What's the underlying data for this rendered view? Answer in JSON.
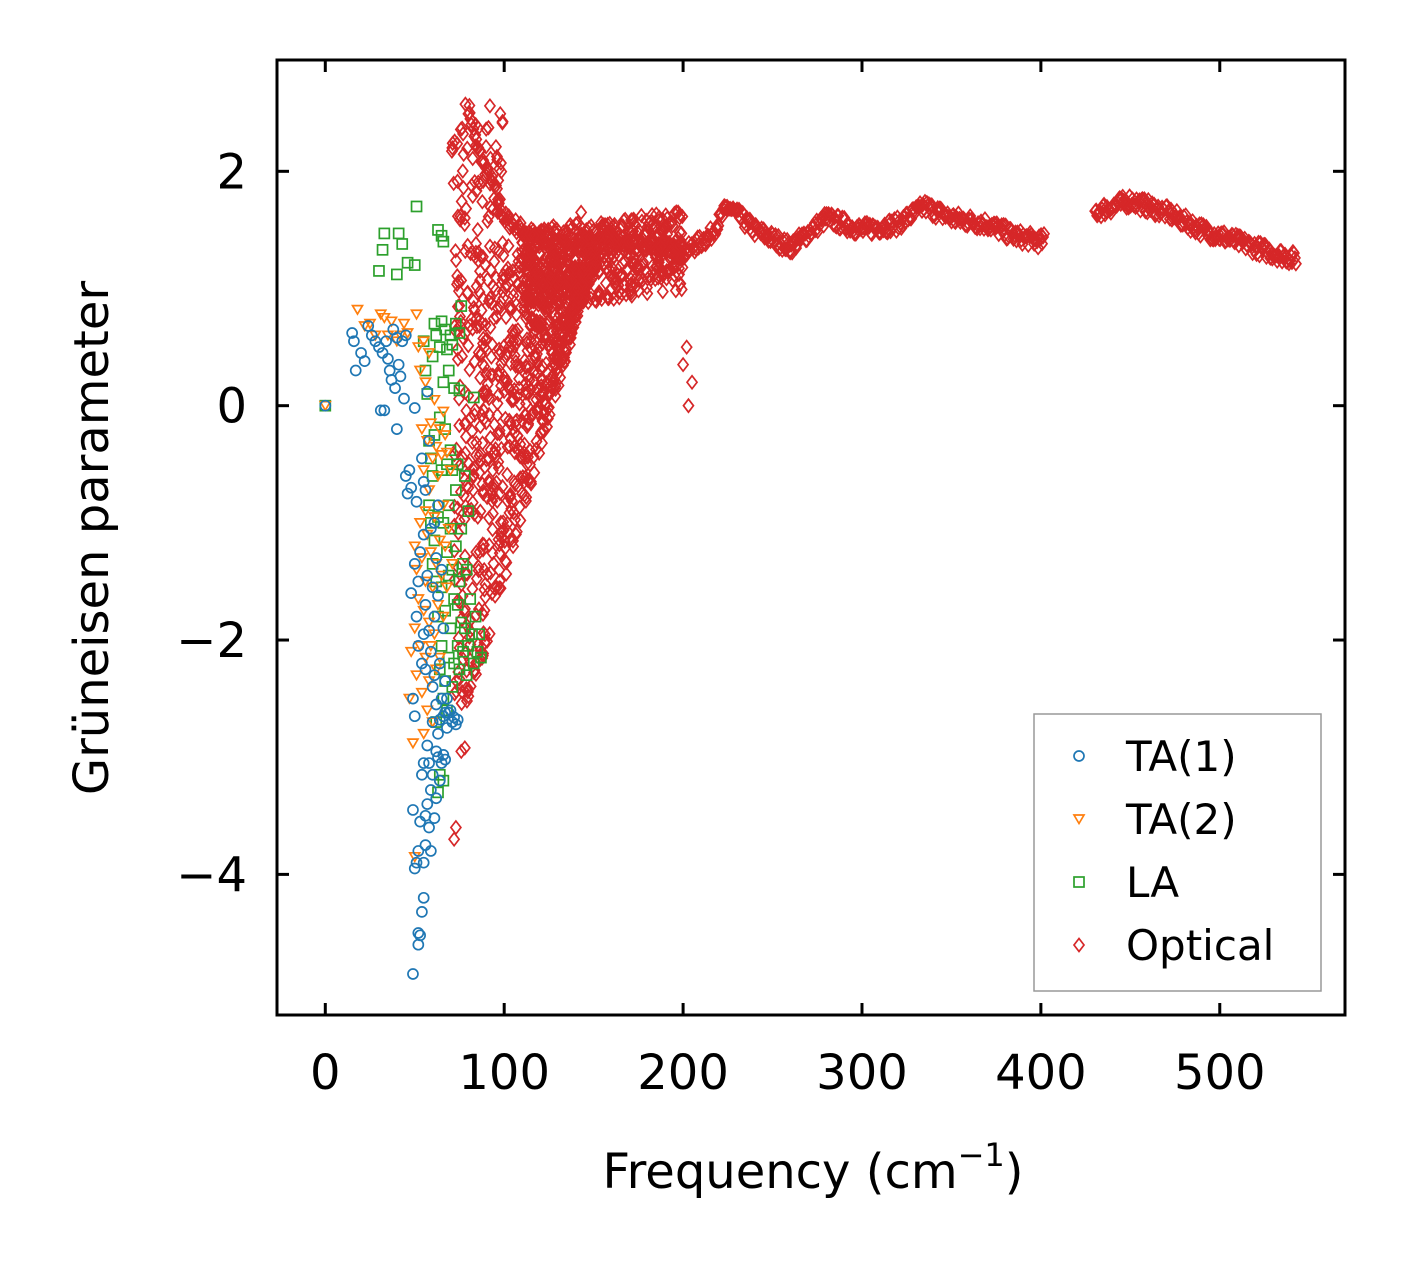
{
  "chart_data": {
    "type": "scatter",
    "title": "",
    "xlabel_main": "Frequency (cm",
    "xlabel_sup": "−1",
    "xlabel_end": ")",
    "ylabel": "Grüneisen parameter",
    "xlim": [
      -27,
      570
    ],
    "ylim": [
      -5.2,
      2.95
    ],
    "xticks": [
      0,
      100,
      200,
      300,
      400,
      500
    ],
    "xtick_labels": [
      "0",
      "100",
      "200",
      "300",
      "400",
      "500"
    ],
    "yticks": [
      2,
      0,
      -2,
      -4
    ],
    "ytick_labels": [
      "2",
      "0",
      "−2",
      "−4"
    ],
    "legend_position": "lower-right",
    "series": [
      {
        "name": "TA(1)",
        "marker": "circle",
        "color": "#1f77b4",
        "points": [
          [
            0,
            0
          ],
          [
            15,
            0.62
          ],
          [
            16,
            0.55
          ],
          [
            17,
            0.3
          ],
          [
            20,
            0.45
          ],
          [
            22,
            0.38
          ],
          [
            24,
            0.68
          ],
          [
            26,
            0.6
          ],
          [
            28,
            0.55
          ],
          [
            30,
            0.5
          ],
          [
            31,
            -0.04
          ],
          [
            32,
            0.45
          ],
          [
            33,
            -0.04
          ],
          [
            34,
            0.55
          ],
          [
            35,
            0.4
          ],
          [
            36,
            0.3
          ],
          [
            37,
            0.22
          ],
          [
            38,
            0.65
          ],
          [
            39,
            0.15
          ],
          [
            40,
            0.58
          ],
          [
            40,
            -0.2
          ],
          [
            41,
            0.35
          ],
          [
            42,
            0.25
          ],
          [
            43,
            0.55
          ],
          [
            44,
            0.06
          ],
          [
            45,
            0.6
          ],
          [
            45,
            -0.6
          ],
          [
            46,
            -0.75
          ],
          [
            47,
            -0.55
          ],
          [
            48,
            -0.7
          ],
          [
            48,
            -1.6
          ],
          [
            49,
            -2.5
          ],
          [
            49,
            -3.45
          ],
          [
            49,
            -4.85
          ],
          [
            50,
            -0.02
          ],
          [
            50,
            -1.35
          ],
          [
            50,
            -2.65
          ],
          [
            50,
            -3.95
          ],
          [
            51,
            -0.82
          ],
          [
            51,
            -1.8
          ],
          [
            51,
            -3.9
          ],
          [
            52,
            -1.5
          ],
          [
            52,
            -2.05
          ],
          [
            52,
            -3.8
          ],
          [
            52,
            -4.5
          ],
          [
            52,
            -4.6
          ],
          [
            53,
            -1.25
          ],
          [
            53,
            -3.55
          ],
          [
            53,
            -4.52
          ],
          [
            54,
            -0.45
          ],
          [
            54,
            -2.2
          ],
          [
            54,
            -3.15
          ],
          [
            54,
            -4.32
          ],
          [
            55,
            -0.65
          ],
          [
            55,
            -1.1
          ],
          [
            55,
            -1.95
          ],
          [
            55,
            -3.05
          ],
          [
            55,
            -3.9
          ],
          [
            55,
            -4.2
          ],
          [
            56,
            -0.72
          ],
          [
            56,
            -1.7
          ],
          [
            56,
            -2.25
          ],
          [
            56,
            -3.5
          ],
          [
            56,
            -3.75
          ],
          [
            57,
            0.12
          ],
          [
            57,
            -1.45
          ],
          [
            57,
            -2.9
          ],
          [
            57,
            -3.4
          ],
          [
            58,
            -0.3
          ],
          [
            58,
            -1.92
          ],
          [
            58,
            -3.6
          ],
          [
            58,
            -3.05
          ],
          [
            59,
            -1.05
          ],
          [
            59,
            -2.1
          ],
          [
            59,
            -3.28
          ],
          [
            59,
            -3.8
          ],
          [
            60,
            -1.55
          ],
          [
            60,
            -2.4
          ],
          [
            60,
            -2.7
          ],
          [
            60,
            -3.15
          ],
          [
            61,
            -1.0
          ],
          [
            61,
            -1.8
          ],
          [
            61,
            -2.3
          ],
          [
            61,
            -3.52
          ],
          [
            62,
            -1.3
          ],
          [
            62,
            -2.55
          ],
          [
            62,
            -2.95
          ],
          [
            62,
            -3.35
          ],
          [
            63,
            -0.85
          ],
          [
            63,
            -1.62
          ],
          [
            63,
            -2.8
          ],
          [
            63,
            -3.0
          ],
          [
            64,
            -2.2
          ],
          [
            64,
            -2.68
          ],
          [
            64,
            -3.2
          ],
          [
            65,
            -1.4
          ],
          [
            65,
            -2.5
          ],
          [
            65,
            -3.05
          ],
          [
            66,
            -1.9
          ],
          [
            66,
            -2.65
          ],
          [
            66,
            -2.98
          ],
          [
            67,
            -2.35
          ],
          [
            67,
            -2.62
          ],
          [
            67,
            -3.02
          ],
          [
            68,
            -2.5
          ],
          [
            68,
            -2.75
          ],
          [
            69,
            -2.62
          ],
          [
            70,
            -2.6
          ],
          [
            71,
            -2.7
          ],
          [
            72,
            -2.66
          ],
          [
            73,
            -2.72
          ],
          [
            74,
            -2.68
          ]
        ]
      },
      {
        "name": "TA(2)",
        "marker": "triangle-down",
        "color": "#ff7f0e",
        "points": [
          [
            0,
            0
          ],
          [
            18,
            0.82
          ],
          [
            22,
            0.68
          ],
          [
            25,
            0.7
          ],
          [
            28,
            0.6
          ],
          [
            31,
            0.78
          ],
          [
            33,
            0.75
          ],
          [
            35,
            0.6
          ],
          [
            37,
            0.72
          ],
          [
            40,
            0.55
          ],
          [
            42,
            0.6
          ],
          [
            44,
            0.7
          ],
          [
            46,
            0.62
          ],
          [
            47,
            -2.5
          ],
          [
            48,
            -2.1
          ],
          [
            49,
            -2.88
          ],
          [
            50,
            -1.2
          ],
          [
            50,
            -1.9
          ],
          [
            50,
            -3.85
          ],
          [
            51,
            0.78
          ],
          [
            51,
            -1.4
          ],
          [
            51,
            -2.3
          ],
          [
            52,
            0.5
          ],
          [
            52,
            -1.65
          ],
          [
            53,
            0.3
          ],
          [
            53,
            -1.0
          ],
          [
            53,
            -2.05
          ],
          [
            54,
            -0.2
          ],
          [
            54,
            -1.3
          ],
          [
            54,
            -2.45
          ],
          [
            55,
            0.55
          ],
          [
            55,
            -0.55
          ],
          [
            55,
            -1.75
          ],
          [
            55,
            -2.8
          ],
          [
            56,
            0.2
          ],
          [
            56,
            -0.9
          ],
          [
            56,
            -1.5
          ],
          [
            56,
            -2.15
          ],
          [
            57,
            -0.3
          ],
          [
            57,
            -1.1
          ],
          [
            57,
            -2.6
          ],
          [
            58,
            0.45
          ],
          [
            58,
            -0.72
          ],
          [
            58,
            -1.85
          ],
          [
            58,
            -2.35
          ],
          [
            59,
            -0.15
          ],
          [
            59,
            -1.25
          ],
          [
            59,
            -2.05
          ],
          [
            60,
            -0.45
          ],
          [
            60,
            -1.55
          ],
          [
            60,
            -2.7
          ],
          [
            61,
            0.05
          ],
          [
            61,
            -0.95
          ],
          [
            61,
            -1.95
          ],
          [
            62,
            -0.35
          ],
          [
            62,
            -1.35
          ],
          [
            62,
            -2.25
          ],
          [
            63,
            -0.6
          ],
          [
            63,
            -1.7
          ],
          [
            64,
            -0.2
          ],
          [
            64,
            -1.15
          ],
          [
            64,
            -2.15
          ],
          [
            65,
            -0.42
          ],
          [
            65,
            -1.45
          ],
          [
            66,
            -0.05
          ],
          [
            66,
            -0.85
          ],
          [
            66,
            -1.8
          ],
          [
            67,
            -0.25
          ],
          [
            67,
            -1.2
          ],
          [
            68,
            -0.4
          ],
          [
            68,
            -1.55
          ],
          [
            69,
            -1.05
          ],
          [
            70,
            -0.55
          ],
          [
            71,
            -1.35
          ]
        ]
      },
      {
        "name": "LA",
        "marker": "square",
        "color": "#2ca02c",
        "points": [
          [
            0,
            0
          ],
          [
            30,
            1.15
          ],
          [
            32,
            1.33
          ],
          [
            33,
            1.47
          ],
          [
            40,
            1.12
          ],
          [
            41,
            1.47
          ],
          [
            43,
            1.38
          ],
          [
            46,
            1.22
          ],
          [
            50,
            1.2
          ],
          [
            51,
            1.7
          ],
          [
            55,
            0.55
          ],
          [
            56,
            0.3
          ],
          [
            57,
            0.1
          ],
          [
            58,
            -0.3
          ],
          [
            58,
            -0.85
          ],
          [
            59,
            -1.0
          ],
          [
            59,
            -0.45
          ],
          [
            60,
            -0.6
          ],
          [
            60,
            -1.35
          ],
          [
            60,
            0.42
          ],
          [
            61,
            -0.25
          ],
          [
            61,
            -1.15
          ],
          [
            61,
            0.7
          ],
          [
            62,
            0.6
          ],
          [
            62,
            -1.5
          ],
          [
            62,
            -2.7
          ],
          [
            63,
            1.5
          ],
          [
            63,
            -0.95
          ],
          [
            63,
            -1.8
          ],
          [
            63,
            -3.3
          ],
          [
            64,
            0.5
          ],
          [
            64,
            -0.1
          ],
          [
            64,
            -2.25
          ],
          [
            64,
            -3.15
          ],
          [
            65,
            1.45
          ],
          [
            65,
            0.72
          ],
          [
            65,
            -0.55
          ],
          [
            65,
            -1.55
          ],
          [
            65,
            -2.05
          ],
          [
            66,
            1.4
          ],
          [
            66,
            0.2
          ],
          [
            66,
            -1.0
          ],
          [
            66,
            -2.5
          ],
          [
            66,
            -3.2
          ],
          [
            67,
            0.65
          ],
          [
            67,
            -0.2
          ],
          [
            67,
            -1.75
          ],
          [
            67,
            -2.35
          ],
          [
            68,
            0.48
          ],
          [
            68,
            -0.5
          ],
          [
            68,
            -1.25
          ],
          [
            68,
            -2.6
          ],
          [
            69,
            0.3
          ],
          [
            69,
            -0.85
          ],
          [
            69,
            -1.45
          ],
          [
            69,
            -2.15
          ],
          [
            70,
            0.6
          ],
          [
            70,
            -0.38
          ],
          [
            70,
            -1.05
          ],
          [
            70,
            -1.9
          ],
          [
            71,
            0.52
          ],
          [
            71,
            -0.55
          ],
          [
            71,
            -1.4
          ],
          [
            71,
            -2.4
          ],
          [
            72,
            0.15
          ],
          [
            72,
            -1.65
          ],
          [
            72,
            -2.2
          ],
          [
            73,
            0.7
          ],
          [
            73,
            -0.72
          ],
          [
            73,
            -1.2
          ],
          [
            74,
            -0.5
          ],
          [
            74,
            -1.7
          ],
          [
            74,
            -2.05
          ],
          [
            75,
            0.62
          ],
          [
            75,
            0.13
          ],
          [
            75,
            -1.5
          ],
          [
            75,
            -2.25
          ],
          [
            76,
            0.85
          ],
          [
            76,
            -1.05
          ],
          [
            76,
            -1.85
          ],
          [
            77,
            -1.35
          ],
          [
            77,
            -2.1
          ],
          [
            78,
            -0.6
          ],
          [
            78,
            -1.9
          ],
          [
            79,
            -1.4
          ],
          [
            79,
            -2.3
          ],
          [
            80,
            -0.9
          ],
          [
            80,
            -2.05
          ],
          [
            81,
            -1.65
          ],
          [
            82,
            -1.95
          ],
          [
            83,
            0.07
          ],
          [
            83,
            -2.2
          ],
          [
            84,
            -1.8
          ],
          [
            85,
            -2.1
          ],
          [
            86,
            -1.95
          ],
          [
            87,
            -2.15
          ]
        ]
      },
      {
        "name": "Optical",
        "marker": "diamond",
        "color": "#d62728",
        "points": []
      }
    ]
  }
}
